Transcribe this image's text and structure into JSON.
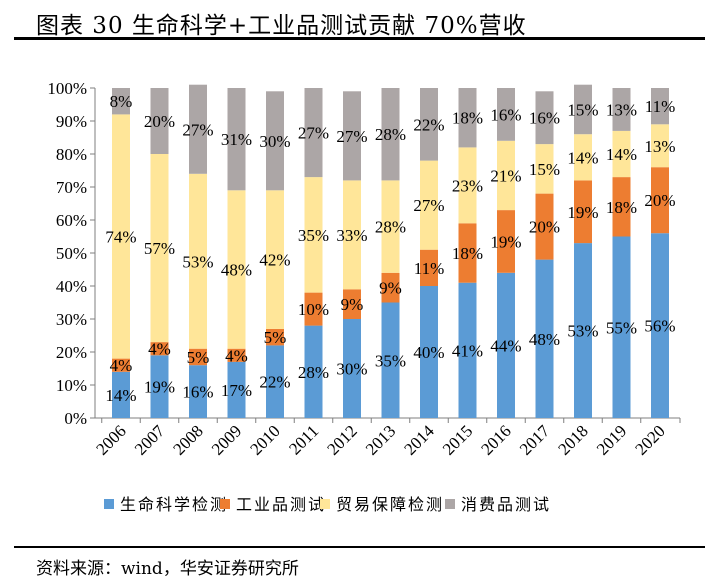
{
  "title": "图表 30  生命科学+工业品测试贡献 70%营收",
  "source": "资料来源：wind，华安证券研究所",
  "chart_data": {
    "type": "bar",
    "stacked": true,
    "percent": true,
    "categories": [
      "2006",
      "2007",
      "2008",
      "2009",
      "2010",
      "2011",
      "2012",
      "2013",
      "2014",
      "2015",
      "2016",
      "2017",
      "2018",
      "2019",
      "2020"
    ],
    "ylim": [
      0,
      100
    ],
    "yticks": [
      "0%",
      "10%",
      "20%",
      "30%",
      "40%",
      "50%",
      "60%",
      "70%",
      "80%",
      "90%",
      "100%"
    ],
    "grid": false,
    "legend_position": "bottom",
    "series": [
      {
        "name": "生命科学检测",
        "color": "#5B9BD5",
        "values": [
          14,
          19,
          16,
          17,
          22,
          28,
          30,
          35,
          40,
          41,
          44,
          48,
          53,
          55,
          56
        ]
      },
      {
        "name": "工业品测试",
        "color": "#ED7D31",
        "values": [
          4,
          4,
          5,
          4,
          5,
          10,
          9,
          9,
          11,
          18,
          19,
          20,
          19,
          18,
          20
        ]
      },
      {
        "name": "贸易保障检测",
        "color": "#FFE699",
        "values": [
          74,
          57,
          53,
          48,
          42,
          35,
          33,
          28,
          27,
          23,
          21,
          15,
          14,
          14,
          13
        ]
      },
      {
        "name": "消费品测试",
        "color": "#ACA6A6",
        "values": [
          8,
          20,
          27,
          31,
          30,
          27,
          27,
          28,
          22,
          18,
          16,
          16,
          15,
          13,
          11
        ]
      }
    ]
  }
}
